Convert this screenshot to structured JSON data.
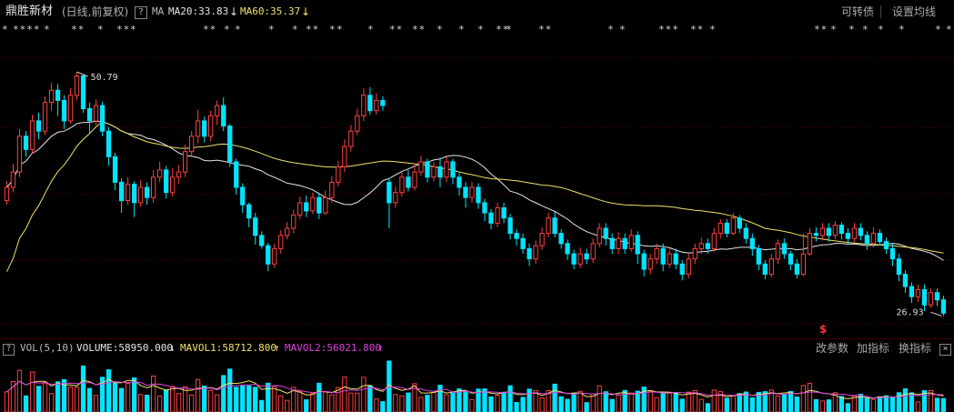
{
  "header": {
    "stock_name": "鼎胜新材",
    "period": "(日线,前复权)",
    "help_icon": "?",
    "ma_label": "MA",
    "ma20": "MA20:33.83",
    "ma20_arrow": "↓",
    "ma60": "MA60:35.37",
    "ma60_arrow": "↓",
    "convertible_bond": "可转债",
    "set_ma": "设置均线"
  },
  "star_markers": [
    "*",
    "****",
    "*",
    "**",
    "*",
    "**",
    "*",
    "**",
    "*",
    "*",
    "*",
    "*",
    "**",
    "*",
    "*",
    "*",
    "**",
    "**",
    "*",
    "*",
    "*",
    "**",
    "*",
    "**",
    "*",
    "*",
    "***",
    "**",
    "*",
    "**",
    "*",
    "*",
    "*",
    "*",
    "*",
    "*",
    "*"
  ],
  "annotations": {
    "high_price": "50.79",
    "low_price": "26.93",
    "dividend_marker": "$"
  },
  "volume_panel": {
    "help_icon": "?",
    "label": "VOL(5,10)",
    "volume": "VOLUME:58950.000",
    "volume_arrow": "↓",
    "mavol1": "MAVOL1:58712.800",
    "mavol1_arrow": "↑",
    "mavol2": "MAVOL2:56021.800",
    "mavol2_arrow": "↑",
    "btn_change_params": "改参数",
    "btn_add_indicator": "加指标",
    "btn_switch_indicator": "换指标",
    "close_icon": "×"
  },
  "colors": {
    "up": "#ff4040",
    "down": "#00e5ff",
    "ma20": "#e6e6e6",
    "ma60": "#f0e26a",
    "mavol1": "#f0e26a",
    "mavol2": "#e040e0",
    "grid": "#5a0000"
  },
  "chart_data": {
    "type": "candlestick",
    "ylim": [
      25,
      54
    ],
    "high": 50.79,
    "low": 26.93,
    "candles": [
      [
        38.2,
        39.5,
        37.8,
        40.1
      ],
      [
        39.5,
        41.0,
        39.0,
        41.8
      ],
      [
        41.0,
        44.5,
        40.5,
        45.2
      ],
      [
        44.5,
        43.2,
        42.5,
        45.0
      ],
      [
        43.2,
        46.0,
        42.8,
        46.6
      ],
      [
        46.0,
        45.0,
        44.2,
        46.8
      ],
      [
        45.0,
        47.8,
        44.6,
        48.4
      ],
      [
        47.8,
        49.0,
        47.0,
        49.7
      ],
      [
        49.0,
        48.0,
        46.5,
        49.6
      ],
      [
        48.0,
        46.0,
        45.2,
        48.5
      ],
      [
        46.0,
        48.5,
        45.7,
        49.2
      ],
      [
        48.5,
        50.4,
        48.0,
        50.79
      ],
      [
        50.4,
        47.2,
        46.8,
        50.6
      ],
      [
        47.2,
        46.0,
        44.8,
        47.8
      ],
      [
        46.0,
        47.5,
        45.6,
        48.1
      ],
      [
        47.5,
        45.0,
        44.5,
        47.9
      ],
      [
        45.0,
        42.5,
        41.6,
        45.4
      ],
      [
        42.5,
        40.0,
        39.2,
        42.9
      ],
      [
        40.0,
        38.2,
        37.0,
        40.4
      ],
      [
        38.2,
        39.8,
        37.8,
        40.5
      ],
      [
        39.8,
        38.0,
        36.6,
        40.1
      ],
      [
        38.0,
        39.5,
        37.6,
        40.2
      ],
      [
        39.5,
        38.5,
        37.8,
        40.0
      ],
      [
        38.5,
        40.5,
        38.0,
        41.2
      ],
      [
        40.5,
        41.2,
        40.0,
        42.0
      ],
      [
        41.2,
        39.0,
        38.4,
        41.6
      ],
      [
        39.0,
        40.5,
        38.6,
        41.4
      ],
      [
        40.5,
        41.0,
        39.8,
        41.7
      ],
      [
        41.0,
        43.0,
        40.5,
        43.7
      ],
      [
        43.0,
        44.5,
        42.6,
        45.0
      ],
      [
        44.5,
        46.0,
        43.8,
        47.1
      ],
      [
        46.0,
        44.5,
        43.9,
        46.4
      ],
      [
        44.5,
        46.5,
        44.0,
        47.0
      ],
      [
        46.5,
        47.5,
        45.6,
        48.0
      ],
      [
        47.5,
        45.5,
        45.0,
        48.3
      ],
      [
        45.5,
        42.0,
        41.5,
        45.7
      ],
      [
        42.0,
        39.5,
        38.8,
        42.3
      ],
      [
        39.5,
        37.8,
        37.0,
        39.9
      ],
      [
        37.8,
        36.5,
        35.6,
        38.0
      ],
      [
        36.5,
        34.8,
        33.9,
        37.0
      ],
      [
        34.8,
        33.8,
        33.5,
        35.2
      ],
      [
        33.8,
        32.0,
        31.3,
        34.1
      ],
      [
        32.0,
        33.5,
        31.6,
        34.0
      ],
      [
        33.5,
        34.8,
        33.0,
        35.3
      ],
      [
        34.8,
        35.5,
        34.4,
        36.1
      ],
      [
        35.5,
        36.8,
        35.0,
        37.3
      ],
      [
        36.8,
        38.0,
        36.4,
        38.6
      ],
      [
        38.0,
        37.2,
        36.6,
        38.7
      ],
      [
        37.2,
        38.5,
        36.9,
        39.0
      ],
      [
        38.5,
        37.0,
        36.4,
        39.0
      ],
      [
        37.0,
        38.5,
        36.8,
        39.2
      ],
      [
        38.5,
        40.0,
        38.0,
        40.6
      ],
      [
        40.0,
        41.5,
        39.6,
        42.1
      ],
      [
        41.5,
        43.5,
        41.0,
        44.2
      ],
      [
        43.5,
        45.0,
        43.0,
        45.6
      ],
      [
        45.0,
        46.5,
        44.6,
        47.2
      ],
      [
        46.5,
        48.5,
        46.0,
        49.2
      ],
      [
        48.5,
        47.0,
        46.6,
        49.3
      ],
      [
        47.0,
        48.0,
        46.6,
        48.7
      ],
      [
        48.0,
        47.5,
        47.0,
        48.4
      ],
      [
        40.0,
        38.0,
        35.5,
        40.4
      ],
      [
        38.0,
        39.0,
        37.5,
        39.6
      ],
      [
        39.0,
        40.5,
        38.6,
        41.0
      ],
      [
        40.5,
        39.5,
        39.1,
        41.2
      ],
      [
        39.5,
        41.0,
        39.2,
        41.8
      ],
      [
        41.0,
        42.0,
        40.6,
        42.6
      ],
      [
        42.0,
        40.5,
        40.0,
        42.3
      ],
      [
        40.5,
        41.5,
        40.1,
        42.0
      ],
      [
        41.5,
        40.5,
        39.5,
        42.4
      ],
      [
        40.5,
        42.0,
        40.0,
        42.5
      ],
      [
        42.0,
        40.5,
        39.8,
        42.3
      ],
      [
        40.5,
        39.5,
        38.7,
        40.9
      ],
      [
        39.5,
        38.5,
        37.5,
        40.0
      ],
      [
        38.5,
        39.5,
        38.0,
        40.0
      ],
      [
        39.5,
        38.0,
        37.4,
        39.9
      ],
      [
        38.0,
        37.0,
        36.2,
        38.4
      ],
      [
        37.0,
        36.0,
        35.4,
        37.4
      ],
      [
        36.0,
        37.5,
        35.6,
        38.0
      ],
      [
        37.5,
        36.5,
        36.0,
        38.0
      ],
      [
        36.5,
        35.0,
        34.4,
        36.9
      ],
      [
        35.0,
        34.5,
        33.8,
        35.4
      ],
      [
        34.5,
        33.5,
        33.0,
        35.0
      ],
      [
        33.5,
        32.5,
        31.8,
        34.0
      ],
      [
        32.5,
        33.8,
        32.0,
        34.3
      ],
      [
        33.8,
        35.0,
        33.4,
        35.6
      ],
      [
        35.0,
        36.5,
        34.6,
        37.0
      ],
      [
        36.5,
        35.0,
        34.6,
        37.1
      ],
      [
        35.0,
        34.0,
        33.5,
        35.4
      ],
      [
        34.0,
        33.0,
        32.4,
        34.4
      ],
      [
        33.0,
        32.0,
        31.5,
        33.4
      ],
      [
        32.0,
        33.0,
        31.6,
        33.6
      ],
      [
        33.0,
        32.5,
        32.0,
        33.5
      ],
      [
        32.5,
        34.0,
        32.1,
        34.5
      ],
      [
        34.0,
        35.5,
        33.6,
        36.0
      ],
      [
        35.5,
        34.5,
        33.8,
        36.0
      ],
      [
        34.5,
        33.5,
        33.0,
        35.0
      ],
      [
        33.5,
        34.5,
        33.0,
        35.1
      ],
      [
        34.5,
        33.5,
        33.0,
        35.0
      ],
      [
        33.5,
        34.8,
        33.2,
        35.4
      ],
      [
        34.8,
        33.0,
        32.0,
        35.2
      ],
      [
        33.0,
        31.5,
        30.8,
        33.4
      ],
      [
        31.5,
        32.5,
        31.0,
        33.0
      ],
      [
        32.5,
        33.5,
        32.0,
        34.0
      ],
      [
        33.5,
        32.0,
        31.3,
        34.0
      ],
      [
        32.0,
        33.0,
        31.6,
        33.5
      ],
      [
        33.0,
        32.0,
        31.5,
        33.5
      ],
      [
        32.0,
        31.0,
        30.4,
        32.4
      ],
      [
        31.0,
        32.5,
        30.6,
        33.0
      ],
      [
        32.5,
        33.5,
        32.0,
        34.0
      ],
      [
        33.5,
        34.0,
        33.0,
        34.6
      ],
      [
        34.0,
        33.5,
        33.0,
        34.5
      ],
      [
        33.5,
        35.0,
        33.2,
        35.5
      ],
      [
        35.0,
        36.0,
        34.5,
        36.4
      ],
      [
        36.0,
        35.0,
        34.6,
        36.4
      ],
      [
        35.0,
        36.5,
        34.8,
        37.0
      ],
      [
        36.5,
        35.5,
        35.0,
        36.8
      ],
      [
        35.5,
        34.5,
        34.0,
        36.0
      ],
      [
        34.5,
        33.5,
        32.8,
        35.0
      ],
      [
        33.5,
        32.0,
        31.4,
        33.9
      ],
      [
        32.0,
        31.0,
        30.5,
        32.4
      ],
      [
        31.0,
        32.5,
        30.7,
        33.0
      ],
      [
        32.5,
        34.0,
        32.0,
        34.4
      ],
      [
        34.0,
        33.0,
        32.5,
        34.5
      ],
      [
        33.0,
        32.0,
        31.4,
        33.3
      ],
      [
        32.0,
        31.0,
        30.6,
        32.5
      ],
      [
        31.0,
        33.0,
        30.8,
        35.0
      ],
      [
        33.0,
        35.0,
        32.8,
        35.5
      ],
      [
        35.0,
        34.8,
        34.2,
        35.6
      ],
      [
        34.8,
        35.5,
        34.3,
        36.0
      ],
      [
        35.5,
        34.8,
        34.2,
        36.0
      ],
      [
        34.8,
        35.8,
        34.4,
        36.2
      ],
      [
        35.8,
        35.0,
        34.4,
        36.1
      ],
      [
        35.0,
        34.5,
        34.0,
        35.5
      ],
      [
        34.5,
        35.5,
        34.1,
        36.0
      ],
      [
        35.5,
        34.8,
        34.3,
        36.0
      ],
      [
        34.8,
        34.0,
        33.4,
        35.2
      ],
      [
        34.0,
        35.0,
        33.6,
        35.6
      ],
      [
        35.0,
        34.2,
        33.8,
        35.4
      ],
      [
        34.2,
        33.5,
        33.0,
        34.6
      ],
      [
        33.5,
        32.5,
        31.8,
        34.0
      ],
      [
        32.5,
        31.0,
        30.3,
        33.0
      ],
      [
        31.0,
        29.8,
        29.2,
        31.4
      ],
      [
        29.8,
        28.8,
        28.2,
        30.2
      ],
      [
        28.8,
        29.5,
        28.3,
        30.0
      ],
      [
        29.5,
        28.0,
        27.4,
        30.0
      ],
      [
        28.0,
        29.2,
        27.7,
        29.6
      ],
      [
        29.2,
        28.5,
        27.9,
        29.6
      ],
      [
        28.5,
        27.2,
        26.93,
        28.9
      ]
    ]
  }
}
